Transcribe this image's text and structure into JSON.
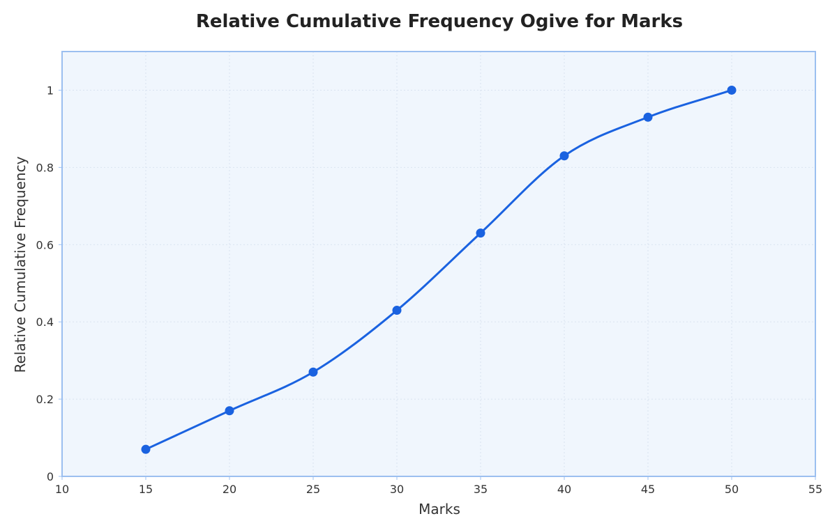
{
  "chart_data": {
    "type": "line",
    "title": "Relative Cumulative Frequency Ogive for Marks",
    "xlabel": "Marks",
    "ylabel": "Relative Cumulative Frequency",
    "xlim": [
      10,
      55
    ],
    "ylim": [
      0,
      1.1
    ],
    "x_ticks": [
      10,
      15,
      20,
      25,
      30,
      35,
      40,
      45,
      50,
      55
    ],
    "y_ticks": [
      0,
      0.2,
      0.4,
      0.6,
      0.8,
      1
    ],
    "x_tick_labels": [
      "10",
      "15",
      "20",
      "25",
      "30",
      "35",
      "40",
      "45",
      "50",
      "55"
    ],
    "y_tick_labels": [
      "0",
      "0.2",
      "0.4",
      "0.6",
      "0.8",
      "1"
    ],
    "grid": true,
    "smooth": true,
    "series": [
      {
        "x": [
          15,
          20,
          25,
          30,
          35,
          40,
          45,
          50
        ],
        "values": [
          0.07,
          0.17,
          0.27,
          0.43,
          0.63,
          0.83,
          0.93,
          1.0
        ],
        "markers": true
      }
    ],
    "colors": {
      "line": "#1a62e0",
      "marker": "#1a62e0",
      "plot_background": "#f0f6fd",
      "plot_border": "#9bbff0",
      "grid": "#d9e3f0"
    }
  }
}
